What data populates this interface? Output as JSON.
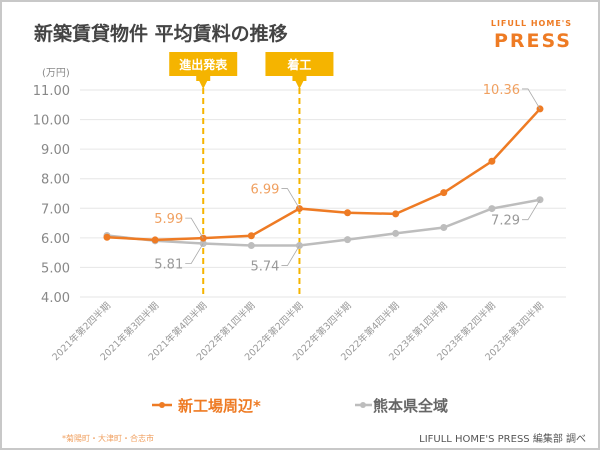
{
  "logo": {
    "line1": "LIFULL HOME'S",
    "line2": "PRESS",
    "color": "#ee7b24"
  },
  "footnote": "*菊陽町・大津町・合志市",
  "credit": "LIFULL HOME'S PRESS 編集部 調べ",
  "chart_data": {
    "type": "line",
    "title": "新築賃貸物件 平均賃料の推移",
    "ylabel": "(万円)",
    "ylim": [
      4,
      11
    ],
    "yticks": [
      "4.00",
      "5.00",
      "6.00",
      "7.00",
      "8.00",
      "9.00",
      "10.00",
      "11.00"
    ],
    "grid": true,
    "legend_position": "bottom",
    "categories": [
      "2021年第2四半期",
      "2021年第3四半期",
      "2021年第4四半期",
      "2022年第1四半期",
      "2022年第2四半期",
      "2022年第3四半期",
      "2022年第4四半期",
      "2023年第1四半期",
      "2023年第2四半期",
      "2023年第3四半期"
    ],
    "series": [
      {
        "name": "新工場周辺*",
        "color": "#ee7b24",
        "label_color": "#f0a060",
        "values": [
          6.02,
          5.93,
          5.99,
          6.07,
          6.99,
          6.85,
          6.81,
          7.53,
          8.59,
          10.36
        ],
        "data_labels": [
          {
            "index": 2,
            "text": "5.99"
          },
          {
            "index": 4,
            "text": "6.99"
          },
          {
            "index": 9,
            "text": "10.36"
          }
        ]
      },
      {
        "name": "熊本県全域",
        "color": "#bdbdbd",
        "label_color": "#999999",
        "values": [
          6.08,
          5.9,
          5.81,
          5.74,
          5.74,
          5.94,
          6.15,
          6.35,
          6.99,
          7.29
        ],
        "data_labels": [
          {
            "index": 2,
            "text": "5.81"
          },
          {
            "index": 4,
            "text": "5.74"
          },
          {
            "index": 9,
            "text": "7.29"
          }
        ]
      }
    ],
    "annotations": [
      {
        "index": 2,
        "text": "進出発表",
        "color": "#f5b400"
      },
      {
        "index": 4,
        "text": "着工",
        "color": "#f5b400"
      }
    ]
  }
}
